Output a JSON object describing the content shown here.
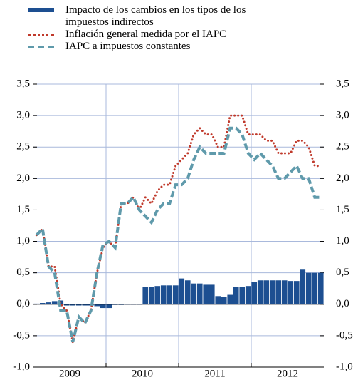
{
  "chart_data": {
    "type": "combo",
    "groups": [
      "2009",
      "2010",
      "2011",
      "2012"
    ],
    "periods_per_group": 12,
    "ylim": [
      -1.0,
      3.5
    ],
    "yticks": [
      {
        "value": -1.0,
        "label": "-1,0"
      },
      {
        "value": -0.5,
        "label": "-0,5"
      },
      {
        "value": 0.0,
        "label": "0,0"
      },
      {
        "value": 0.5,
        "label": "0,5"
      },
      {
        "value": 1.0,
        "label": "1,0"
      },
      {
        "value": 1.5,
        "label": "1,5"
      },
      {
        "value": 2.0,
        "label": "2,0"
      },
      {
        "value": 2.5,
        "label": "2,5"
      },
      {
        "value": 3.0,
        "label": "3,0"
      },
      {
        "value": 3.5,
        "label": "3,5"
      }
    ],
    "grid": true,
    "series": [
      {
        "name": "Impacto de los cambios en los tipos de los impuestos indirectos",
        "style": "bar",
        "color": "#1d4f91",
        "values": [
          0.01,
          0.02,
          0.03,
          0.05,
          0.06,
          -0.02,
          -0.02,
          -0.02,
          -0.02,
          -0.02,
          -0.03,
          -0.06,
          -0.06,
          -0.01,
          -0.01,
          0,
          0,
          0,
          0.27,
          0.28,
          0.29,
          0.3,
          0.3,
          0.3,
          0.41,
          0.38,
          0.33,
          0.33,
          0.31,
          0.31,
          0.13,
          0.12,
          0.15,
          0.27,
          0.27,
          0.29,
          0.36,
          0.38,
          0.38,
          0.38,
          0.38,
          0.38,
          0.37,
          0.37,
          0.55,
          0.5,
          0.5,
          0.5
        ]
      },
      {
        "name": "Inflación general medida por el IAPC",
        "style": "dotted",
        "color": "#c0392b",
        "values": [
          1.1,
          1.2,
          0.6,
          0.6,
          0.0,
          -0.1,
          -0.6,
          -0.2,
          -0.3,
          -0.1,
          0.5,
          0.9,
          1.0,
          0.9,
          1.6,
          1.6,
          1.7,
          1.5,
          1.7,
          1.6,
          1.8,
          1.9,
          1.9,
          2.2,
          2.3,
          2.4,
          2.7,
          2.8,
          2.7,
          2.7,
          2.5,
          2.5,
          3.0,
          3.0,
          3.0,
          2.7,
          2.7,
          2.7,
          2.6,
          2.6,
          2.4,
          2.4,
          2.4,
          2.6,
          2.6,
          2.5,
          2.2,
          2.2
        ]
      },
      {
        "name": "IAPC a impuestos constantes",
        "style": "dashed",
        "color": "#5f9aab",
        "values": [
          1.1,
          1.2,
          0.6,
          0.5,
          -0.1,
          -0.1,
          -0.6,
          -0.2,
          -0.3,
          -0.1,
          0.5,
          0.95,
          1.0,
          0.9,
          1.6,
          1.6,
          1.7,
          1.5,
          1.4,
          1.3,
          1.5,
          1.6,
          1.6,
          1.9,
          1.9,
          2.0,
          2.3,
          2.5,
          2.4,
          2.4,
          2.4,
          2.4,
          2.8,
          2.8,
          2.7,
          2.4,
          2.3,
          2.4,
          2.3,
          2.2,
          2.0,
          2.0,
          2.1,
          2.2,
          2.0,
          2.0,
          1.7,
          1.7
        ]
      }
    ]
  }
}
